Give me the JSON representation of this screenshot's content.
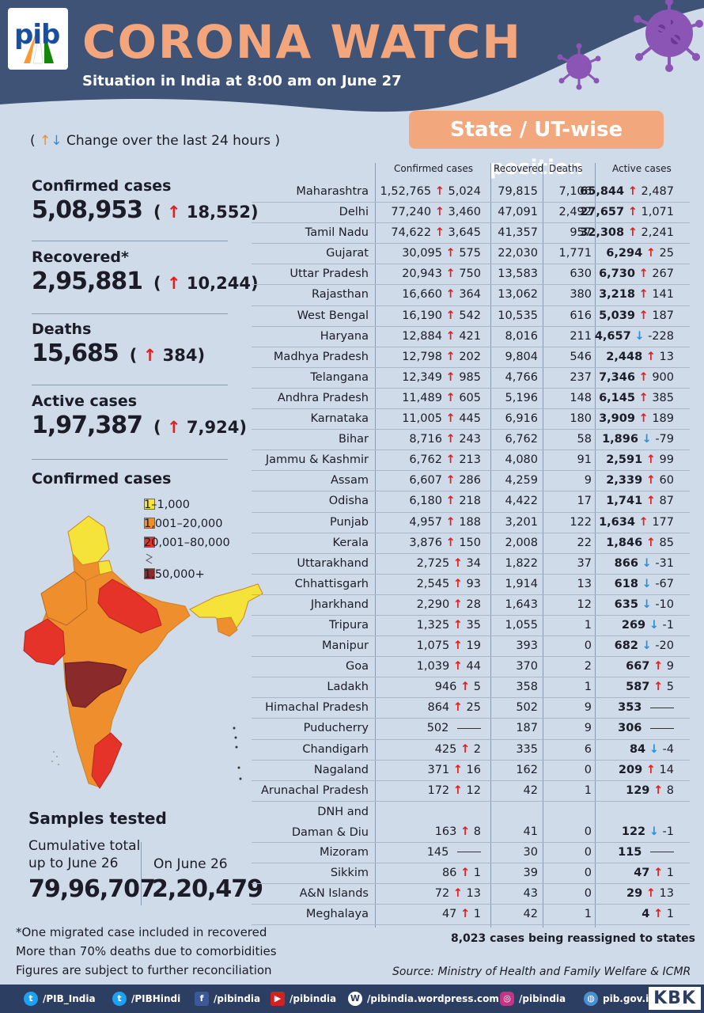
{
  "header": {
    "logo_text": "pib",
    "title": "CORONA WATCH",
    "subtitle": "Situation in India at 8:00 am on June 27",
    "badge": "State / UT-wise position"
  },
  "legend24": {
    "open": "(",
    "up": "↑",
    "down": "↓",
    "text": "Change over the last 24 hours",
    "close": ")"
  },
  "summary": [
    {
      "label": "Confirmed cases",
      "value": "5,08,953",
      "change": "18,552"
    },
    {
      "label": "Recovered*",
      "value": "2,95,881",
      "change": "10,244"
    },
    {
      "label": "Deaths",
      "value": "15,685",
      "change": "384"
    },
    {
      "label": "Active cases",
      "value": "1,97,387",
      "change": "7,924"
    }
  ],
  "map": {
    "title": "Confirmed cases",
    "legend": [
      {
        "label": "1–1,000",
        "color": "#f5e33a"
      },
      {
        "label": "1,001–20,000",
        "color": "#ef8e2c"
      },
      {
        "label": "20,001–80,000",
        "color": "#e5332a"
      },
      {
        "label": "1,50,000+",
        "color": "#8b2a2a"
      }
    ]
  },
  "samples": {
    "title": "Samples tested",
    "cumulative_label": "Cumulative total up to June 26",
    "cumulative_value": "79,96,707",
    "day_label": "On June 26",
    "day_value": "2,20,479"
  },
  "notes": [
    "*One migrated case included in recovered",
    "More than 70% deaths due to comorbidities",
    "Figures are subject to further reconciliation"
  ],
  "reassign": "8,023 cases being reassigned to states",
  "source": "Source: Ministry of Health and Family Welfare & ICMR",
  "table": {
    "headers": [
      "Confirmed cases",
      "Recovered",
      "Deaths",
      "Active cases"
    ],
    "rows": [
      {
        "state": "Maharashtra",
        "conf": "1,52,765",
        "cdir": "up",
        "cchg": "5,024",
        "rec": "79,815",
        "deaths": "7,106",
        "act": "65,844",
        "adir": "up",
        "achg": "2,487"
      },
      {
        "state": "Delhi",
        "conf": "77,240",
        "cdir": "up",
        "cchg": "3,460",
        "rec": "47,091",
        "deaths": "2,492",
        "act": "27,657",
        "adir": "up",
        "achg": "1,071"
      },
      {
        "state": "Tamil Nadu",
        "conf": "74,622",
        "cdir": "up",
        "cchg": "3,645",
        "rec": "41,357",
        "deaths": "957",
        "act": "32,308",
        "adir": "up",
        "achg": "2,241"
      },
      {
        "state": "Gujarat",
        "conf": "30,095",
        "cdir": "up",
        "cchg": "575",
        "rec": "22,030",
        "deaths": "1,771",
        "act": "6,294",
        "adir": "up",
        "achg": "25"
      },
      {
        "state": "Uttar Pradesh",
        "conf": "20,943",
        "cdir": "up",
        "cchg": "750",
        "rec": "13,583",
        "deaths": "630",
        "act": "6,730",
        "adir": "up",
        "achg": "267"
      },
      {
        "state": "Rajasthan",
        "conf": "16,660",
        "cdir": "up",
        "cchg": "364",
        "rec": "13,062",
        "deaths": "380",
        "act": "3,218",
        "adir": "up",
        "achg": "141"
      },
      {
        "state": "West Bengal",
        "conf": "16,190",
        "cdir": "up",
        "cchg": "542",
        "rec": "10,535",
        "deaths": "616",
        "act": "5,039",
        "adir": "up",
        "achg": "187"
      },
      {
        "state": "Haryana",
        "conf": "12,884",
        "cdir": "up",
        "cchg": "421",
        "rec": "8,016",
        "deaths": "211",
        "act": "4,657",
        "adir": "down",
        "achg": "-228"
      },
      {
        "state": "Madhya Pradesh",
        "conf": "12,798",
        "cdir": "up",
        "cchg": "202",
        "rec": "9,804",
        "deaths": "546",
        "act": "2,448",
        "adir": "up",
        "achg": "13"
      },
      {
        "state": "Telangana",
        "conf": "12,349",
        "cdir": "up",
        "cchg": "985",
        "rec": "4,766",
        "deaths": "237",
        "act": "7,346",
        "adir": "up",
        "achg": "900"
      },
      {
        "state": "Andhra Pradesh",
        "conf": "11,489",
        "cdir": "up",
        "cchg": "605",
        "rec": "5,196",
        "deaths": "148",
        "act": "6,145",
        "adir": "up",
        "achg": "385"
      },
      {
        "state": "Karnataka",
        "conf": "11,005",
        "cdir": "up",
        "cchg": "445",
        "rec": "6,916",
        "deaths": "180",
        "act": "3,909",
        "adir": "up",
        "achg": "189"
      },
      {
        "state": "Bihar",
        "conf": "8,716",
        "cdir": "up",
        "cchg": "243",
        "rec": "6,762",
        "deaths": "58",
        "act": "1,896",
        "adir": "down",
        "achg": "-79"
      },
      {
        "state": "Jammu & Kashmir",
        "conf": "6,762",
        "cdir": "up",
        "cchg": "213",
        "rec": "4,080",
        "deaths": "91",
        "act": "2,591",
        "adir": "up",
        "achg": "99"
      },
      {
        "state": "Assam",
        "conf": "6,607",
        "cdir": "up",
        "cchg": "286",
        "rec": "4,259",
        "deaths": "9",
        "act": "2,339",
        "adir": "up",
        "achg": "60"
      },
      {
        "state": "Odisha",
        "conf": "6,180",
        "cdir": "up",
        "cchg": "218",
        "rec": "4,422",
        "deaths": "17",
        "act": "1,741",
        "adir": "up",
        "achg": "87"
      },
      {
        "state": "Punjab",
        "conf": "4,957",
        "cdir": "up",
        "cchg": "188",
        "rec": "3,201",
        "deaths": "122",
        "act": "1,634",
        "adir": "up",
        "achg": "177"
      },
      {
        "state": "Kerala",
        "conf": "3,876",
        "cdir": "up",
        "cchg": "150",
        "rec": "2,008",
        "deaths": "22",
        "act": "1,846",
        "adir": "up",
        "achg": "85"
      },
      {
        "state": "Uttarakhand",
        "conf": "2,725",
        "cdir": "up",
        "cchg": "34",
        "rec": "1,822",
        "deaths": "37",
        "act": "866",
        "adir": "down",
        "achg": "-31"
      },
      {
        "state": "Chhattisgarh",
        "conf": "2,545",
        "cdir": "up",
        "cchg": "93",
        "rec": "1,914",
        "deaths": "13",
        "act": "618",
        "adir": "down",
        "achg": "-67"
      },
      {
        "state": "Jharkhand",
        "conf": "2,290",
        "cdir": "up",
        "cchg": "28",
        "rec": "1,643",
        "deaths": "12",
        "act": "635",
        "adir": "down",
        "achg": "-10"
      },
      {
        "state": "Tripura",
        "conf": "1,325",
        "cdir": "up",
        "cchg": "35",
        "rec": "1,055",
        "deaths": "1",
        "act": "269",
        "adir": "down",
        "achg": "-1"
      },
      {
        "state": "Manipur",
        "conf": "1,075",
        "cdir": "up",
        "cchg": "19",
        "rec": "393",
        "deaths": "0",
        "act": "682",
        "adir": "down",
        "achg": "-20"
      },
      {
        "state": "Goa",
        "conf": "1,039",
        "cdir": "up",
        "cchg": "44",
        "rec": "370",
        "deaths": "2",
        "act": "667",
        "adir": "up",
        "achg": "9"
      },
      {
        "state": "Ladakh",
        "conf": "946",
        "cdir": "up",
        "cchg": "5",
        "rec": "358",
        "deaths": "1",
        "act": "587",
        "adir": "up",
        "achg": "5"
      },
      {
        "state": "Himachal Pradesh",
        "conf": "864",
        "cdir": "up",
        "cchg": "25",
        "rec": "502",
        "deaths": "9",
        "act": "353",
        "adir": "none",
        "achg": ""
      },
      {
        "state": "Puducherry",
        "conf": "502",
        "cdir": "none",
        "cchg": "",
        "rec": "187",
        "deaths": "9",
        "act": "306",
        "adir": "none",
        "achg": ""
      },
      {
        "state": "Chandigarh",
        "conf": "425",
        "cdir": "up",
        "cchg": "2",
        "rec": "335",
        "deaths": "6",
        "act": "84",
        "adir": "down",
        "achg": "-4"
      },
      {
        "state": "Nagaland",
        "conf": "371",
        "cdir": "up",
        "cchg": "16",
        "rec": "162",
        "deaths": "0",
        "act": "209",
        "adir": "up",
        "achg": "14"
      },
      {
        "state": "Arunachal Pradesh",
        "conf": "172",
        "cdir": "up",
        "cchg": "12",
        "rec": "42",
        "deaths": "1",
        "act": "129",
        "adir": "up",
        "achg": "8"
      },
      {
        "state": "DNH and Daman & Diu",
        "conf": "163",
        "cdir": "up",
        "cchg": "8",
        "rec": "41",
        "deaths": "0",
        "act": "122",
        "adir": "down",
        "achg": "-1"
      },
      {
        "state": "Mizoram",
        "conf": "145",
        "cdir": "none",
        "cchg": "",
        "rec": "30",
        "deaths": "0",
        "act": "115",
        "adir": "none",
        "achg": ""
      },
      {
        "state": "Sikkim",
        "conf": "86",
        "cdir": "up",
        "cchg": "1",
        "rec": "39",
        "deaths": "0",
        "act": "47",
        "adir": "up",
        "achg": "1"
      },
      {
        "state": "A&N Islands",
        "conf": "72",
        "cdir": "up",
        "cchg": "13",
        "rec": "43",
        "deaths": "0",
        "act": "29",
        "adir": "up",
        "achg": "13"
      },
      {
        "state": "Meghalaya",
        "conf": "47",
        "cdir": "up",
        "cchg": "1",
        "rec": "42",
        "deaths": "1",
        "act": "4",
        "adir": "up",
        "achg": "1"
      }
    ]
  },
  "footer": [
    {
      "icon": "twitter-icon",
      "label": "/PIB_India"
    },
    {
      "icon": "twitter-icon",
      "label": "/PIBHindi"
    },
    {
      "icon": "facebook-icon",
      "label": "/pibindia"
    },
    {
      "icon": "youtube-icon",
      "label": "/pibindia"
    },
    {
      "icon": "wordpress-icon",
      "label": "/pibindia.wordpress.com"
    },
    {
      "icon": "instagram-icon",
      "label": "/pibindia"
    },
    {
      "icon": "globe-icon",
      "label": "pib.gov.in"
    }
  ],
  "kbk": "KBK"
}
